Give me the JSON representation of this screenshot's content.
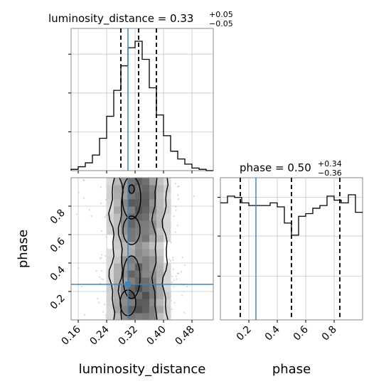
{
  "chart_data": [
    {
      "panel": "marginal",
      "type": "histogram",
      "title_prefix": "luminosity_distance = 0.33",
      "title_plus": "+0.05",
      "title_minus": "−0.05",
      "x_range": [
        0.14,
        0.54
      ],
      "x_ticks": [
        0.16,
        0.24,
        0.32,
        0.4,
        0.48
      ],
      "grid": true,
      "bin_edges": [
        0.14,
        0.16,
        0.18,
        0.2,
        0.22,
        0.24,
        0.26,
        0.28,
        0.3,
        0.32,
        0.34,
        0.36,
        0.38,
        0.4,
        0.42,
        0.44,
        0.46,
        0.48,
        0.5,
        0.52,
        0.54
      ],
      "counts": [
        0.01,
        0.03,
        0.06,
        0.12,
        0.25,
        0.42,
        0.62,
        0.81,
        0.95,
        1.0,
        0.86,
        0.64,
        0.43,
        0.27,
        0.15,
        0.09,
        0.05,
        0.02,
        0.01,
        0.0
      ],
      "quantiles": [
        0.28,
        0.33,
        0.38
      ],
      "truth": 0.3
    },
    {
      "panel": "joint",
      "type": "scatter_density",
      "x_label": "luminosity_distance",
      "y_label": "phase",
      "x_range": [
        0.14,
        0.54
      ],
      "y_range": [
        0.0,
        1.0
      ],
      "x_ticks": [
        0.16,
        0.24,
        0.32,
        0.4,
        0.48
      ],
      "y_ticks": [
        0.2,
        0.4,
        0.6,
        0.8
      ],
      "truth": [
        0.3,
        0.25
      ],
      "grid": true
    },
    {
      "panel": "marginal",
      "type": "histogram",
      "title_prefix": "phase = 0.50",
      "title_plus": "+0.34",
      "title_minus": "−0.36",
      "x_label": "phase",
      "x_range": [
        0.0,
        1.0
      ],
      "x_ticks": [
        0.2,
        0.4,
        0.6,
        0.8
      ],
      "grid": true,
      "bin_edges": [
        0.0,
        0.05,
        0.1,
        0.15,
        0.2,
        0.25,
        0.3,
        0.35,
        0.4,
        0.45,
        0.5,
        0.55,
        0.6,
        0.65,
        0.7,
        0.75,
        0.8,
        0.85,
        0.9,
        0.95,
        1.0
      ],
      "counts": [
        0.87,
        0.92,
        0.91,
        0.87,
        0.85,
        0.85,
        0.85,
        0.87,
        0.84,
        0.72,
        0.63,
        0.77,
        0.79,
        0.83,
        0.85,
        0.92,
        0.89,
        0.87,
        0.93,
        0.8
      ],
      "quantiles": [
        0.14,
        0.5,
        0.84
      ],
      "truth": 0.25
    }
  ],
  "colors": {
    "truth": "#4682b4",
    "hist": "#000000",
    "grid": "#c8c8c8",
    "axes": "#888888"
  }
}
